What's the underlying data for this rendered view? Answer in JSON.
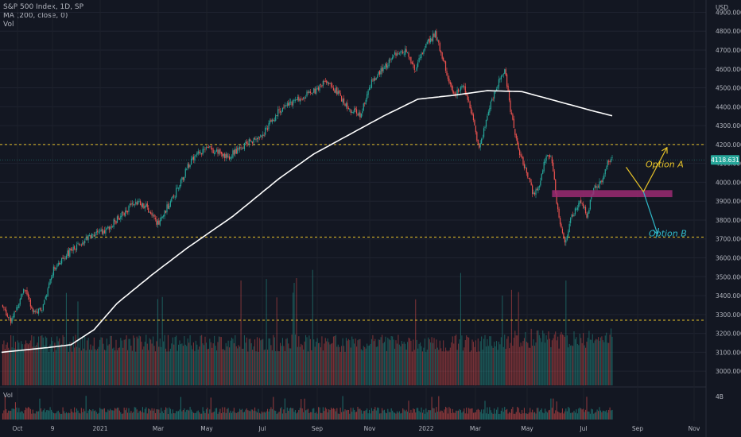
{
  "legend": {
    "symbol": "S&P 500 Index, 1D, SP",
    "ma": "MA (200, close, 0)",
    "vol": "Vol"
  },
  "volume_pane": {
    "label": "Vol",
    "scale_label": "4B"
  },
  "colors": {
    "background": "#131722",
    "up": "#26a69a",
    "down": "#ef5350",
    "ma": "#ffffff",
    "support_line": "#e6c229",
    "zone": "#9c2a72",
    "option_a": "#e6c229",
    "option_b": "#2fb9c9",
    "price_label_bg": "#26a69a",
    "axis_text": "#b2b5be"
  },
  "chart_data": {
    "type": "candlestick",
    "title": "S&P 500 Index, 1D, SP",
    "x_axis_labels": [
      "Oct",
      "9",
      "2021",
      "Mar",
      "May",
      "Jul",
      "Sep",
      "Nov",
      "2022",
      "Mar",
      "May",
      "Jul",
      "Sep",
      "Nov"
    ],
    "y_axis_unit": "USD",
    "y_ticks": [
      3000,
      3100,
      3200,
      3300,
      3400,
      3500,
      3600,
      3700,
      3800,
      3900,
      4000,
      4100,
      4200,
      4300,
      4400,
      4500,
      4600,
      4700,
      4800,
      4900
    ],
    "y_tick_labels": [
      "3000.000",
      "3100.000",
      "3200.000",
      "3300.000",
      "3400.000",
      "3500.000",
      "3600.000",
      "3700.000",
      "3800.000",
      "3900.000",
      "4000.000",
      "4100.000",
      "4200.000",
      "4300.000",
      "4400.000",
      "4500.000",
      "4600.000",
      "4700.000",
      "4800.000",
      "4900.000"
    ],
    "ylim": [
      2925,
      4965
    ],
    "last_price": 4118.631,
    "last_price_label": "4118.631",
    "close_anchors": [
      {
        "d": 0,
        "v": 3350
      },
      {
        "d": 8,
        "v": 3270
      },
      {
        "d": 20,
        "v": 3440
      },
      {
        "d": 28,
        "v": 3310
      },
      {
        "d": 35,
        "v": 3330
      },
      {
        "d": 45,
        "v": 3550
      },
      {
        "d": 60,
        "v": 3640
      },
      {
        "d": 75,
        "v": 3710
      },
      {
        "d": 90,
        "v": 3750
      },
      {
        "d": 105,
        "v": 3830
      },
      {
        "d": 115,
        "v": 3900
      },
      {
        "d": 125,
        "v": 3870
      },
      {
        "d": 135,
        "v": 3780
      },
      {
        "d": 150,
        "v": 3940
      },
      {
        "d": 165,
        "v": 4130
      },
      {
        "d": 180,
        "v": 4180
      },
      {
        "d": 195,
        "v": 4130
      },
      {
        "d": 210,
        "v": 4200
      },
      {
        "d": 225,
        "v": 4250
      },
      {
        "d": 240,
        "v": 4380
      },
      {
        "d": 255,
        "v": 4440
      },
      {
        "d": 270,
        "v": 4480
      },
      {
        "d": 280,
        "v": 4530
      },
      {
        "d": 290,
        "v": 4480
      },
      {
        "d": 300,
        "v": 4390
      },
      {
        "d": 310,
        "v": 4360
      },
      {
        "d": 320,
        "v": 4530
      },
      {
        "d": 330,
        "v": 4600
      },
      {
        "d": 340,
        "v": 4680
      },
      {
        "d": 350,
        "v": 4700
      },
      {
        "d": 358,
        "v": 4590
      },
      {
        "d": 365,
        "v": 4710
      },
      {
        "d": 375,
        "v": 4790
      },
      {
        "d": 382,
        "v": 4650
      },
      {
        "d": 390,
        "v": 4470
      },
      {
        "d": 400,
        "v": 4500
      },
      {
        "d": 408,
        "v": 4330
      },
      {
        "d": 413,
        "v": 4170
      },
      {
        "d": 420,
        "v": 4360
      },
      {
        "d": 428,
        "v": 4510
      },
      {
        "d": 435,
        "v": 4600
      },
      {
        "d": 440,
        "v": 4380
      },
      {
        "d": 447,
        "v": 4170
      },
      {
        "d": 453,
        "v": 4070
      },
      {
        "d": 460,
        "v": 3930
      },
      {
        "d": 465,
        "v": 3970
      },
      {
        "d": 470,
        "v": 4130
      },
      {
        "d": 475,
        "v": 4150
      },
      {
        "d": 481,
        "v": 3850
      },
      {
        "d": 487,
        "v": 3680
      },
      {
        "d": 492,
        "v": 3800
      },
      {
        "d": 500,
        "v": 3900
      },
      {
        "d": 506,
        "v": 3830
      },
      {
        "d": 512,
        "v": 3960
      },
      {
        "d": 518,
        "v": 4000
      },
      {
        "d": 524,
        "v": 4100
      },
      {
        "d": 528,
        "v": 4140
      }
    ],
    "ma_200": [
      {
        "d": 0,
        "v": 3100
      },
      {
        "d": 40,
        "v": 3125
      },
      {
        "d": 60,
        "v": 3140
      },
      {
        "d": 80,
        "v": 3220
      },
      {
        "d": 100,
        "v": 3360
      },
      {
        "d": 130,
        "v": 3510
      },
      {
        "d": 160,
        "v": 3650
      },
      {
        "d": 200,
        "v": 3820
      },
      {
        "d": 240,
        "v": 4020
      },
      {
        "d": 270,
        "v": 4150
      },
      {
        "d": 300,
        "v": 4250
      },
      {
        "d": 330,
        "v": 4350
      },
      {
        "d": 360,
        "v": 4440
      },
      {
        "d": 390,
        "v": 4460
      },
      {
        "d": 420,
        "v": 4485
      },
      {
        "d": 450,
        "v": 4480
      },
      {
        "d": 480,
        "v": 4430
      },
      {
        "d": 510,
        "v": 4380
      },
      {
        "d": 528,
        "v": 4352
      }
    ],
    "horizontal_levels": [
      4200,
      3710,
      3270
    ],
    "zone": {
      "from_day": 476,
      "to_day": 580,
      "low": 3930,
      "high": 3950
    },
    "option_a": {
      "label": "Option A",
      "points": [
        {
          "d": 540,
          "v": 4080
        },
        {
          "d": 555,
          "v": 3950
        },
        {
          "d": 575,
          "v": 4180
        }
      ]
    },
    "option_b": {
      "label": "Option B",
      "points": [
        {
          "d": 555,
          "v": 3950
        },
        {
          "d": 567,
          "v": 3730
        }
      ]
    }
  }
}
